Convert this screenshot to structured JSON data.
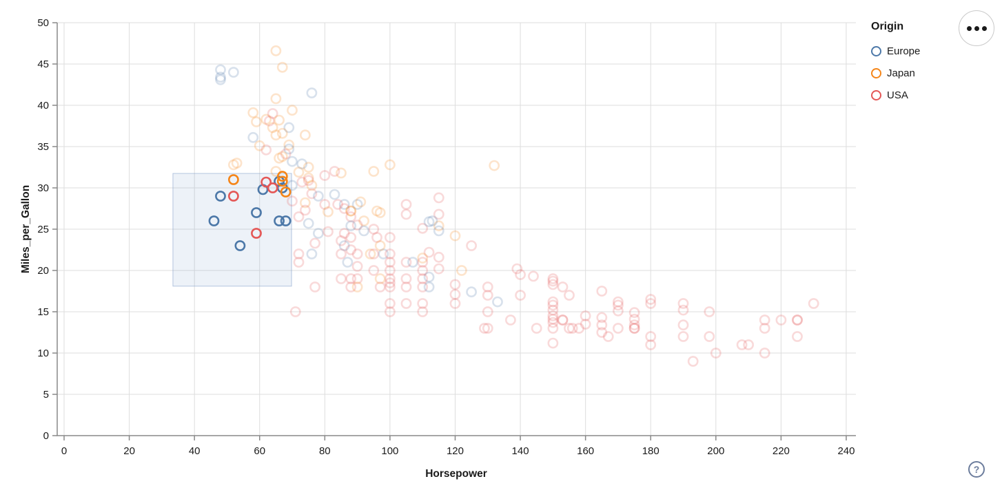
{
  "chart_data": {
    "type": "scatter",
    "xlabel": "Horsepower",
    "ylabel": "Miles_per_Gallon",
    "axes": {
      "x": {
        "min": 0,
        "max": 240,
        "ticks": [
          0,
          20,
          40,
          60,
          80,
          100,
          120,
          140,
          160,
          180,
          200,
          220,
          240
        ]
      },
      "y": {
        "min": 0,
        "max": 50,
        "ticks": [
          0,
          5,
          10,
          15,
          20,
          25,
          30,
          35,
          40,
          45,
          50
        ]
      }
    },
    "grid": true,
    "legend": {
      "title": "Origin",
      "position": "top-right",
      "items": [
        {
          "code": "E",
          "label": "Europe",
          "color": "#4c78a8"
        },
        {
          "code": "J",
          "label": "Japan",
          "color": "#f58518"
        },
        {
          "code": "U",
          "label": "USA",
          "color": "#e45756"
        }
      ]
    },
    "brush_selection": {
      "horsepower_range": [
        33.4,
        69.8
      ],
      "mpg_range": [
        18.1,
        31.75
      ],
      "fill": "#6e93c9",
      "fill_opacity": 0.12,
      "stroke": "#7c9bc9",
      "stroke_opacity": 0.55
    },
    "point_style": {
      "radius": 6.6,
      "stroke_width": 2.6,
      "faded_opacity": 0.22,
      "selected_opacity": 1.0
    },
    "points_format": [
      "horsepower",
      "miles_per_gallon",
      "origin_code",
      "selected"
    ],
    "points": [
      [
        46,
        26,
        "E",
        1
      ],
      [
        48,
        29,
        "E",
        1
      ],
      [
        54,
        23,
        "E",
        1
      ],
      [
        59,
        27,
        "E",
        1
      ],
      [
        61,
        29.8,
        "E",
        1
      ],
      [
        66,
        30.8,
        "E",
        1
      ],
      [
        67,
        30,
        "E",
        1
      ],
      [
        66,
        26,
        "E",
        1
      ],
      [
        68,
        26,
        "E",
        1
      ],
      [
        52,
        31,
        "J",
        1
      ],
      [
        67,
        31.4,
        "J",
        1
      ],
      [
        67,
        30.8,
        "J",
        1
      ],
      [
        68,
        29.5,
        "J",
        1
      ],
      [
        52,
        29,
        "U",
        1
      ],
      [
        62,
        30.7,
        "U",
        1
      ],
      [
        64,
        30,
        "U",
        1
      ],
      [
        59,
        24.5,
        "U",
        1
      ],
      [
        65,
        46.6,
        "J",
        0
      ],
      [
        67,
        44.6,
        "J",
        0
      ],
      [
        48,
        44.3,
        "E",
        0
      ],
      [
        48,
        43.4,
        "E",
        0
      ],
      [
        48,
        43.1,
        "E",
        0
      ],
      [
        52,
        44,
        "E",
        0
      ],
      [
        76,
        41.5,
        "E",
        0
      ],
      [
        65,
        40.8,
        "J",
        0
      ],
      [
        70,
        39.4,
        "J",
        0
      ],
      [
        58,
        39.1,
        "J",
        0
      ],
      [
        64,
        39,
        "U",
        0
      ],
      [
        63,
        38.1,
        "U",
        0
      ],
      [
        62,
        38.3,
        "J",
        0
      ],
      [
        59,
        38,
        "J",
        0
      ],
      [
        66,
        38.2,
        "J",
        0
      ],
      [
        69,
        37.3,
        "E",
        0
      ],
      [
        64,
        37.3,
        "J",
        0
      ],
      [
        67,
        36.6,
        "J",
        0
      ],
      [
        65,
        36.4,
        "J",
        0
      ],
      [
        58,
        36.1,
        "E",
        0
      ],
      [
        60,
        35.1,
        "J",
        0
      ],
      [
        69,
        35.2,
        "J",
        0
      ],
      [
        74,
        36.4,
        "J",
        0
      ],
      [
        69,
        34.7,
        "E",
        0
      ],
      [
        62,
        34.6,
        "U",
        0
      ],
      [
        67,
        33.8,
        "J",
        0
      ],
      [
        68,
        34.1,
        "U",
        0
      ],
      [
        66,
        33.6,
        "J",
        0
      ],
      [
        53,
        33,
        "J",
        0
      ],
      [
        52,
        32.8,
        "J",
        0
      ],
      [
        70,
        33.2,
        "E",
        0
      ],
      [
        73,
        32.9,
        "E",
        0
      ],
      [
        75,
        32.5,
        "J",
        0
      ],
      [
        65,
        32,
        "J",
        0
      ],
      [
        72,
        31.9,
        "J",
        0
      ],
      [
        75,
        31.2,
        "J",
        0
      ],
      [
        100,
        32.8,
        "J",
        0
      ],
      [
        95,
        32,
        "J",
        0
      ],
      [
        132,
        32.7,
        "J",
        0
      ],
      [
        76,
        30.3,
        "J",
        0
      ],
      [
        80,
        31.5,
        "U",
        0
      ],
      [
        83,
        32,
        "U",
        0
      ],
      [
        73,
        30.7,
        "U",
        0
      ],
      [
        85,
        31.8,
        "J",
        0
      ],
      [
        75,
        30.9,
        "U",
        0
      ],
      [
        70,
        30.3,
        "E",
        0
      ],
      [
        70,
        28.4,
        "U",
        0
      ],
      [
        76,
        29.3,
        "U",
        0
      ],
      [
        78,
        29,
        "E",
        0
      ],
      [
        83,
        29.2,
        "E",
        0
      ],
      [
        90,
        28,
        "E",
        0
      ],
      [
        86,
        28,
        "E",
        0
      ],
      [
        91,
        28.3,
        "J",
        0
      ],
      [
        88,
        27.2,
        "J",
        0
      ],
      [
        88,
        27.2,
        "J",
        0
      ],
      [
        74,
        28.2,
        "J",
        0
      ],
      [
        74,
        27.3,
        "U",
        0
      ],
      [
        72,
        26.5,
        "U",
        0
      ],
      [
        80,
        28,
        "U",
        0
      ],
      [
        81,
        27.1,
        "J",
        0
      ],
      [
        84,
        28,
        "U",
        0
      ],
      [
        86,
        27.5,
        "U",
        0
      ],
      [
        88,
        26.5,
        "U",
        0
      ],
      [
        92,
        26,
        "J",
        0
      ],
      [
        90,
        25.5,
        "U",
        0
      ],
      [
        97,
        27,
        "J",
        0
      ],
      [
        95,
        25,
        "U",
        0
      ],
      [
        86,
        24.5,
        "U",
        0
      ],
      [
        88,
        25.4,
        "E",
        0
      ],
      [
        92,
        24.8,
        "E",
        0
      ],
      [
        96,
        24,
        "U",
        0
      ],
      [
        75,
        25.7,
        "E",
        0
      ],
      [
        78,
        24.5,
        "E",
        0
      ],
      [
        105,
        28,
        "U",
        0
      ],
      [
        105,
        26.8,
        "U",
        0
      ],
      [
        115,
        28.8,
        "U",
        0
      ],
      [
        115,
        26.8,
        "U",
        0
      ],
      [
        96,
        27.2,
        "J",
        0
      ],
      [
        110,
        25.1,
        "U",
        0
      ],
      [
        115,
        25.4,
        "J",
        0
      ],
      [
        120,
        24.2,
        "J",
        0
      ],
      [
        115,
        24.8,
        "E",
        0
      ],
      [
        112,
        25.9,
        "E",
        0
      ],
      [
        113,
        26,
        "E",
        0
      ],
      [
        100,
        24,
        "U",
        0
      ],
      [
        88,
        24,
        "U",
        0
      ],
      [
        81,
        24.7,
        "U",
        0
      ],
      [
        85,
        23.6,
        "U",
        0
      ],
      [
        77,
        23.3,
        "U",
        0
      ],
      [
        98,
        22,
        "E",
        0
      ],
      [
        125,
        23,
        "U",
        0
      ],
      [
        112,
        22.2,
        "U",
        0
      ],
      [
        115,
        21.6,
        "U",
        0
      ],
      [
        94,
        22,
        "J",
        0
      ],
      [
        97,
        23,
        "J",
        0
      ],
      [
        86,
        23,
        "E",
        0
      ],
      [
        76,
        22,
        "E",
        0
      ],
      [
        87,
        21,
        "E",
        0
      ],
      [
        107,
        21,
        "E",
        0
      ],
      [
        110,
        21.5,
        "J",
        0
      ],
      [
        122,
        20,
        "J",
        0
      ],
      [
        72,
        22,
        "U",
        0
      ],
      [
        72,
        21,
        "U",
        0
      ],
      [
        85,
        22,
        "U",
        0
      ],
      [
        88,
        22.5,
        "U",
        0
      ],
      [
        90,
        22,
        "U",
        0
      ],
      [
        95,
        22,
        "U",
        0
      ],
      [
        100,
        22,
        "U",
        0
      ],
      [
        100,
        21,
        "U",
        0
      ],
      [
        105,
        21,
        "U",
        0
      ],
      [
        110,
        21,
        "U",
        0
      ],
      [
        90,
        20.5,
        "U",
        0
      ],
      [
        95,
        20,
        "U",
        0
      ],
      [
        100,
        20,
        "U",
        0
      ],
      [
        110,
        20,
        "U",
        0
      ],
      [
        115,
        20.2,
        "U",
        0
      ],
      [
        112,
        19.2,
        "E",
        0
      ],
      [
        77,
        18,
        "U",
        0
      ],
      [
        97,
        18,
        "U",
        0
      ],
      [
        88,
        19,
        "U",
        0
      ],
      [
        88,
        18,
        "U",
        0
      ],
      [
        85,
        19,
        "U",
        0
      ],
      [
        90,
        19,
        "U",
        0
      ],
      [
        100,
        19,
        "U",
        0
      ],
      [
        100,
        18.5,
        "U",
        0
      ],
      [
        100,
        18,
        "U",
        0
      ],
      [
        105,
        19,
        "U",
        0
      ],
      [
        105,
        18,
        "U",
        0
      ],
      [
        110,
        19,
        "U",
        0
      ],
      [
        110,
        18,
        "U",
        0
      ],
      [
        90,
        18,
        "J",
        0
      ],
      [
        97,
        19,
        "J",
        0
      ],
      [
        120,
        18.3,
        "U",
        0
      ],
      [
        120,
        17.1,
        "U",
        0
      ],
      [
        130,
        18,
        "U",
        0
      ],
      [
        130,
        17,
        "U",
        0
      ],
      [
        112,
        18,
        "E",
        0
      ],
      [
        125,
        17.4,
        "E",
        0
      ],
      [
        133,
        16.2,
        "E",
        0
      ],
      [
        139,
        20.2,
        "U",
        0
      ],
      [
        140,
        19.5,
        "U",
        0
      ],
      [
        144,
        19.3,
        "U",
        0
      ],
      [
        150,
        19,
        "U",
        0
      ],
      [
        150,
        18.7,
        "U",
        0
      ],
      [
        150,
        18.3,
        "U",
        0
      ],
      [
        153,
        18,
        "U",
        0
      ],
      [
        140,
        17,
        "U",
        0
      ],
      [
        155,
        17,
        "U",
        0
      ],
      [
        165,
        17.5,
        "U",
        0
      ],
      [
        71,
        15,
        "U",
        0
      ],
      [
        100,
        16,
        "U",
        0
      ],
      [
        100,
        15,
        "U",
        0
      ],
      [
        105,
        16,
        "U",
        0
      ],
      [
        110,
        16,
        "U",
        0
      ],
      [
        110,
        15,
        "U",
        0
      ],
      [
        120,
        16,
        "U",
        0
      ],
      [
        130,
        15,
        "U",
        0
      ],
      [
        129,
        13,
        "U",
        0
      ],
      [
        130,
        13,
        "U",
        0
      ],
      [
        137,
        14,
        "U",
        0
      ],
      [
        145,
        13,
        "U",
        0
      ],
      [
        150,
        16.2,
        "U",
        0
      ],
      [
        150,
        15.8,
        "U",
        0
      ],
      [
        150,
        15.2,
        "U",
        0
      ],
      [
        150,
        14.5,
        "U",
        0
      ],
      [
        150,
        14.1,
        "U",
        0
      ],
      [
        150,
        13.7,
        "U",
        0
      ],
      [
        150,
        13,
        "U",
        0
      ],
      [
        150,
        11.2,
        "U",
        0
      ],
      [
        153,
        14,
        "U",
        0
      ],
      [
        153,
        14,
        "U",
        0
      ],
      [
        155,
        13,
        "U",
        0
      ],
      [
        156,
        13,
        "U",
        0
      ],
      [
        158,
        13,
        "U",
        0
      ],
      [
        160,
        14.5,
        "U",
        0
      ],
      [
        160,
        13.5,
        "U",
        0
      ],
      [
        165,
        14.3,
        "U",
        0
      ],
      [
        165,
        13.4,
        "U",
        0
      ],
      [
        165,
        12.5,
        "U",
        0
      ],
      [
        167,
        12,
        "U",
        0
      ],
      [
        170,
        16.2,
        "U",
        0
      ],
      [
        170,
        15.8,
        "U",
        0
      ],
      [
        170,
        15.1,
        "U",
        0
      ],
      [
        170,
        13,
        "U",
        0
      ],
      [
        175,
        14.9,
        "U",
        0
      ],
      [
        175,
        14.1,
        "U",
        0
      ],
      [
        175,
        13.4,
        "U",
        0
      ],
      [
        175,
        13,
        "U",
        0
      ],
      [
        175,
        13,
        "U",
        0
      ],
      [
        180,
        16.5,
        "U",
        0
      ],
      [
        180,
        16,
        "U",
        0
      ],
      [
        180,
        12,
        "U",
        0
      ],
      [
        180,
        11,
        "U",
        0
      ],
      [
        190,
        16,
        "U",
        0
      ],
      [
        190,
        15.2,
        "U",
        0
      ],
      [
        190,
        13.4,
        "U",
        0
      ],
      [
        190,
        12,
        "U",
        0
      ],
      [
        193,
        9,
        "U",
        0
      ],
      [
        198,
        15,
        "U",
        0
      ],
      [
        198,
        12,
        "U",
        0
      ],
      [
        200,
        10,
        "U",
        0
      ],
      [
        208,
        11,
        "U",
        0
      ],
      [
        210,
        11,
        "U",
        0
      ],
      [
        215,
        10,
        "U",
        0
      ],
      [
        215,
        14,
        "U",
        0
      ],
      [
        215,
        13,
        "U",
        0
      ],
      [
        220,
        14,
        "U",
        0
      ],
      [
        225,
        14,
        "U",
        0
      ],
      [
        225,
        14,
        "U",
        0
      ],
      [
        225,
        12,
        "U",
        0
      ],
      [
        230,
        16,
        "U",
        0
      ]
    ]
  },
  "ui": {
    "options_button": "chart-options-menu",
    "help_label": "?"
  },
  "style_colors": {
    "gridline": "#dddddd",
    "axis_domain": "#888888",
    "tick_label": "#1a1a1a"
  }
}
